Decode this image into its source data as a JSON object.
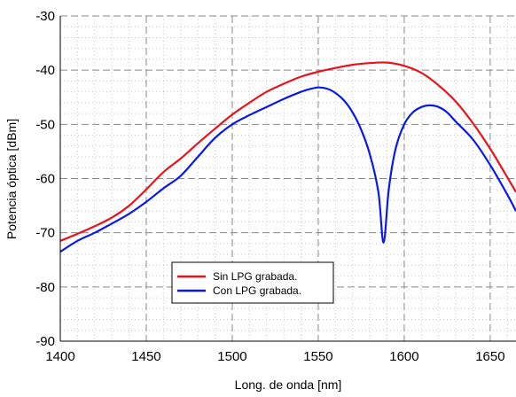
{
  "chart_data": {
    "type": "line",
    "title": "",
    "xlabel": "Long. de onda [nm]",
    "ylabel": "Potencia óptica [dBm]",
    "xlim": [
      1400,
      1665
    ],
    "ylim": [
      -90,
      -30
    ],
    "xticks": [
      1400,
      1450,
      1500,
      1550,
      1600,
      1650
    ],
    "yticks": [
      -90,
      -80,
      -70,
      -60,
      -50,
      -40,
      -30
    ],
    "grid": true,
    "legend": "bottom-left",
    "series": [
      {
        "name": "Sin LPG grabada.",
        "color": "#e8141b",
        "x": [
          1400,
          1410,
          1420,
          1430,
          1440,
          1450,
          1460,
          1470,
          1480,
          1490,
          1500,
          1510,
          1520,
          1530,
          1540,
          1550,
          1560,
          1570,
          1580,
          1590,
          1600,
          1610,
          1620,
          1630,
          1640,
          1650,
          1660,
          1665
        ],
        "y": [
          -71.5,
          -70.2,
          -68.8,
          -67.2,
          -65.0,
          -62.0,
          -58.8,
          -56.3,
          -53.5,
          -50.8,
          -48.2,
          -46.0,
          -44.0,
          -42.5,
          -41.2,
          -40.3,
          -39.6,
          -39.0,
          -38.7,
          -38.6,
          -39.2,
          -40.5,
          -42.8,
          -45.8,
          -49.8,
          -54.5,
          -59.8,
          -62.5
        ]
      },
      {
        "name": "Con LPG grabada.",
        "color": "#0b19e8",
        "x": [
          1400,
          1410,
          1420,
          1430,
          1440,
          1450,
          1460,
          1470,
          1480,
          1490,
          1500,
          1510,
          1520,
          1530,
          1540,
          1545,
          1550,
          1555,
          1560,
          1565,
          1570,
          1575,
          1580,
          1585,
          1588,
          1591,
          1595,
          1600,
          1605,
          1610,
          1615,
          1620,
          1625,
          1630,
          1640,
          1650,
          1660,
          1665
        ],
        "y": [
          -73.5,
          -71.5,
          -70.0,
          -68.3,
          -66.5,
          -64.3,
          -61.8,
          -59.5,
          -56.0,
          -52.5,
          -50.0,
          -48.3,
          -46.8,
          -45.3,
          -44.0,
          -43.5,
          -43.2,
          -43.4,
          -44.2,
          -45.6,
          -47.8,
          -51.0,
          -55.5,
          -62.5,
          -71.8,
          -62.0,
          -54.5,
          -50.0,
          -47.8,
          -46.8,
          -46.5,
          -46.8,
          -47.8,
          -49.5,
          -52.8,
          -57.5,
          -63.0,
          -66.0
        ]
      }
    ]
  }
}
